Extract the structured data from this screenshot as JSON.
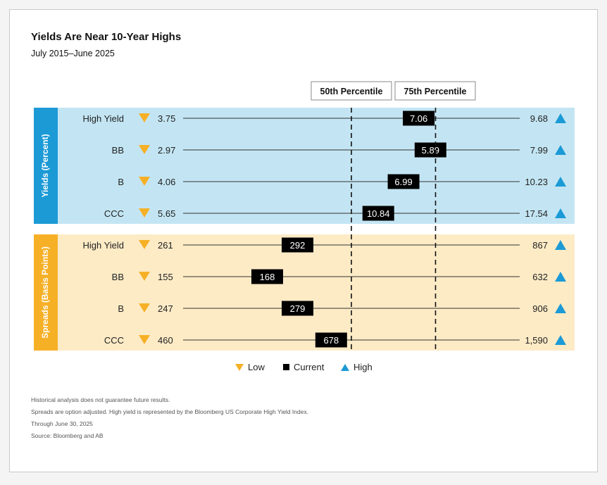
{
  "title": "Yields Are Near 10-Year Highs",
  "subtitle": "July 2015–June 2025",
  "colors": {
    "low_marker": "#f6b026",
    "high_marker": "#1b9ad6",
    "current_marker": "#000000",
    "yields_band": "#c3e5f3",
    "yields_label_bg": "#1b9ad6",
    "spreads_band": "#fdebc6",
    "spreads_label_bg": "#f6b026"
  },
  "legend": {
    "low": "Low",
    "current": "Current",
    "high": "High"
  },
  "footnotes": [
    "Historical analysis does not guarantee future results.",
    "Spreads are option adjusted. High yield is represented by the Bloomberg US Corporate High Yield Index.",
    "Through June 30, 2025",
    "Source: Bloomberg and AB"
  ],
  "chart_data": {
    "type": "range_position",
    "reference_lines": [
      {
        "label": "50th Percentile",
        "position": 0.5
      },
      {
        "label": "75th Percentile",
        "position": 0.75
      }
    ],
    "panels": [
      {
        "label": "Yields (Percent)",
        "rows": [
          {
            "category": "High Yield",
            "low": "3.75",
            "current": "7.06",
            "high": "9.68",
            "current_position": 0.7
          },
          {
            "category": "BB",
            "low": "2.97",
            "current": "5.89",
            "high": "7.99",
            "current_position": 0.735
          },
          {
            "category": "B",
            "low": "4.06",
            "current": "6.99",
            "high": "10.23",
            "current_position": 0.655
          },
          {
            "category": "CCC",
            "low": "5.65",
            "current": "10.84",
            "high": "17.54",
            "current_position": 0.58
          }
        ]
      },
      {
        "label": "Spreads (Basis Points)",
        "rows": [
          {
            "category": "High Yield",
            "low": "261",
            "current": "292",
            "high": "867",
            "current_position": 0.34
          },
          {
            "category": "BB",
            "low": "155",
            "current": "168",
            "high": "632",
            "current_position": 0.25
          },
          {
            "category": "B",
            "low": "247",
            "current": "279",
            "high": "906",
            "current_position": 0.34
          },
          {
            "category": "CCC",
            "low": "460",
            "current": "678",
            "high": "1,590",
            "current_position": 0.44
          }
        ]
      }
    ]
  }
}
